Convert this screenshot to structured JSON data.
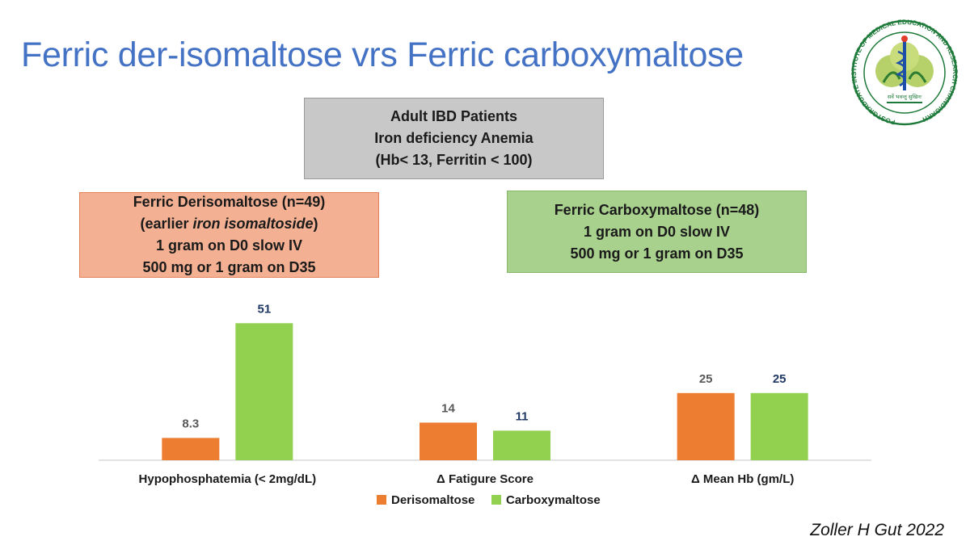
{
  "slide": {
    "title": "Ferric der-isomaltose vrs  Ferric carboxymaltose",
    "citation": "Zoller H Gut 2022"
  },
  "logo": {
    "text": "POSTGRADUATE INSTITUTE OF MEDICAL EDUCATION AND RESEARCH CHANDIGARH",
    "motto": "सर्वे भवन्तु सुखिनः"
  },
  "boxes": {
    "population": {
      "line1": "Adult IBD Patients",
      "line2": "Iron deficiency Anemia",
      "line3": "(Hb< 13, Ferritin < 100)",
      "color": "#c8c8c8"
    },
    "derisomaltose": {
      "line1": "Ferric Derisomaltose (n=49)",
      "line2_prefix": "(earlier ",
      "line2_italic": "iron isomaltoside",
      "line2_suffix": ")",
      "line3": "1 gram on D0 slow IV",
      "line4": "500 mg or 1 gram on D35",
      "color": "#f4b092"
    },
    "carboxymaltose": {
      "line1": "Ferric Carboxymaltose (n=48)",
      "line2": "1 gram on D0 slow IV",
      "line3": "500 mg or 1 gram on D35",
      "color": "#a9d18e"
    }
  },
  "chart_data": {
    "type": "bar",
    "categories": [
      "Hypophosphatemia (< 2mg/dL)",
      "Δ Fatigure Score",
      "Δ Mean Hb  (gm/L)"
    ],
    "series": [
      {
        "name": "Derisomaltose",
        "values": [
          8.3,
          14,
          25
        ],
        "labels": [
          "8.3",
          "14",
          "25"
        ],
        "color": "#ed7d31",
        "label_color": "#595959"
      },
      {
        "name": "Carboxymaltose",
        "values": [
          51,
          11,
          25
        ],
        "labels": [
          "51",
          "11",
          "25"
        ],
        "color": "#92d050",
        "label_color": "#1f3864"
      }
    ],
    "ylim": [
      0,
      55
    ],
    "grid": false,
    "legend": "bottom"
  }
}
